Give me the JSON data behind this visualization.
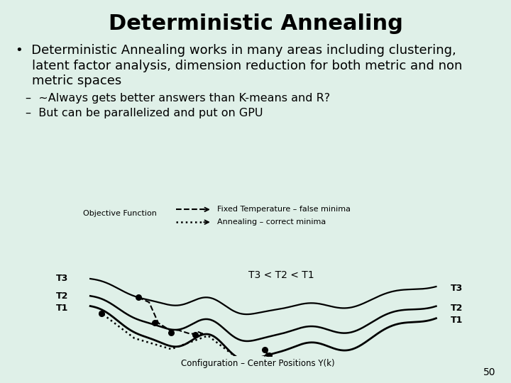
{
  "title": "Deterministic Annealing",
  "title_fontsize": 22,
  "bullet1_line1": "•  Deterministic Annealing works in many areas including clustering,",
  "bullet1_line2": "    latent factor analysis, dimension reduction for both metric and non",
  "bullet1_line3": "    metric spaces",
  "sub1": "–  ~Always gets better answers than K-means and R?",
  "sub2": "–  But can be parallelized and put on GPU",
  "legend1": "Fixed Temperature – false minima",
  "legend2": "Annealing – correct minima",
  "obj_label": "Objective Function",
  "xaxis_label": "Configuration – Center Positions Y(k)",
  "annot_center": "T3 < T2 < T1",
  "page_num": "50",
  "bg_color": "#dff0e8",
  "text_color": "#000000",
  "bullet_fontsize": 13,
  "sub_fontsize": 11.5
}
